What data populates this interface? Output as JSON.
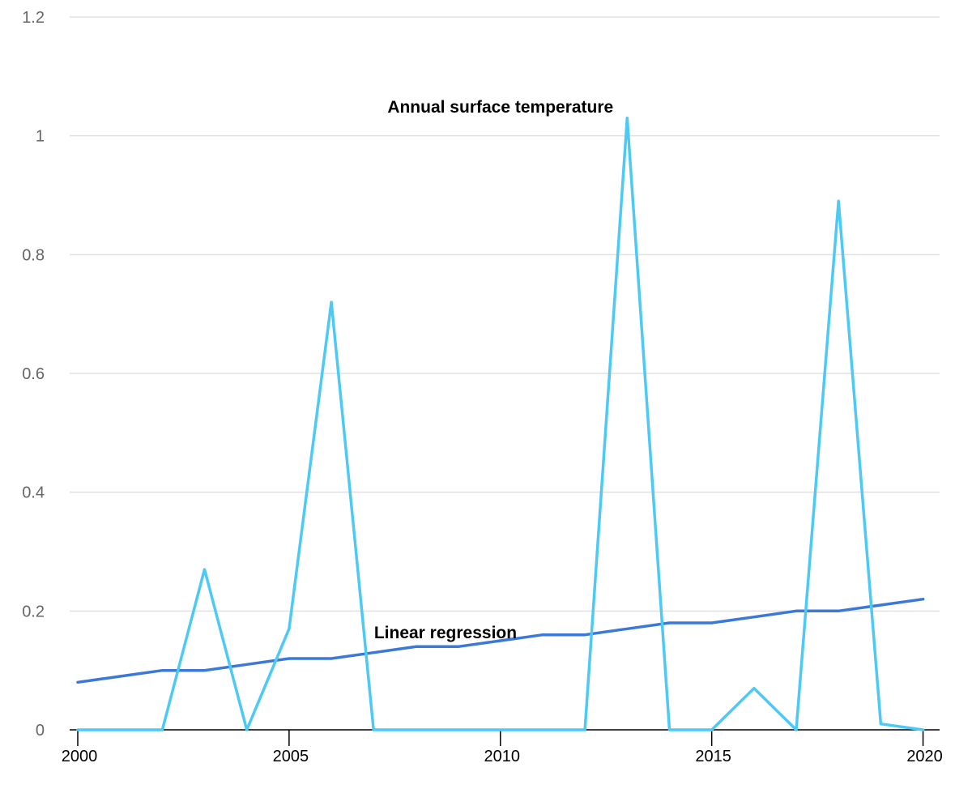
{
  "chart_data": {
    "type": "line",
    "x": [
      2000,
      2001,
      2002,
      2003,
      2004,
      2005,
      2006,
      2007,
      2008,
      2009,
      2010,
      2011,
      2012,
      2013,
      2014,
      2015,
      2016,
      2017,
      2018,
      2019,
      2020
    ],
    "series": [
      {
        "name": "Annual surface temperature",
        "color": "#4dc9f6",
        "values": [
          0,
          0,
          0,
          0.27,
          0,
          0.17,
          0.72,
          0,
          0,
          0,
          0,
          0,
          0,
          1.03,
          0,
          0,
          0.07,
          0,
          0.89,
          0.01,
          0
        ]
      },
      {
        "name": "Linear regression",
        "color": "#3b78d8",
        "values": [
          0.08,
          0.09,
          0.1,
          0.1,
          0.11,
          0.12,
          0.12,
          0.13,
          0.14,
          0.14,
          0.15,
          0.16,
          0.16,
          0.17,
          0.18,
          0.18,
          0.19,
          0.2,
          0.2,
          0.21,
          0.22
        ]
      }
    ],
    "y_ticks": [
      "0",
      "0.2",
      "0.4",
      "0.6",
      "0.8",
      "1",
      "1.2"
    ],
    "x_ticks": [
      "2000",
      "2005",
      "2010",
      "2015",
      "2020"
    ],
    "xlim": [
      2000,
      2020.2
    ],
    "ylim": [
      0,
      1.2
    ],
    "grid": true,
    "xlabel": "",
    "ylabel": "",
    "title": ""
  }
}
